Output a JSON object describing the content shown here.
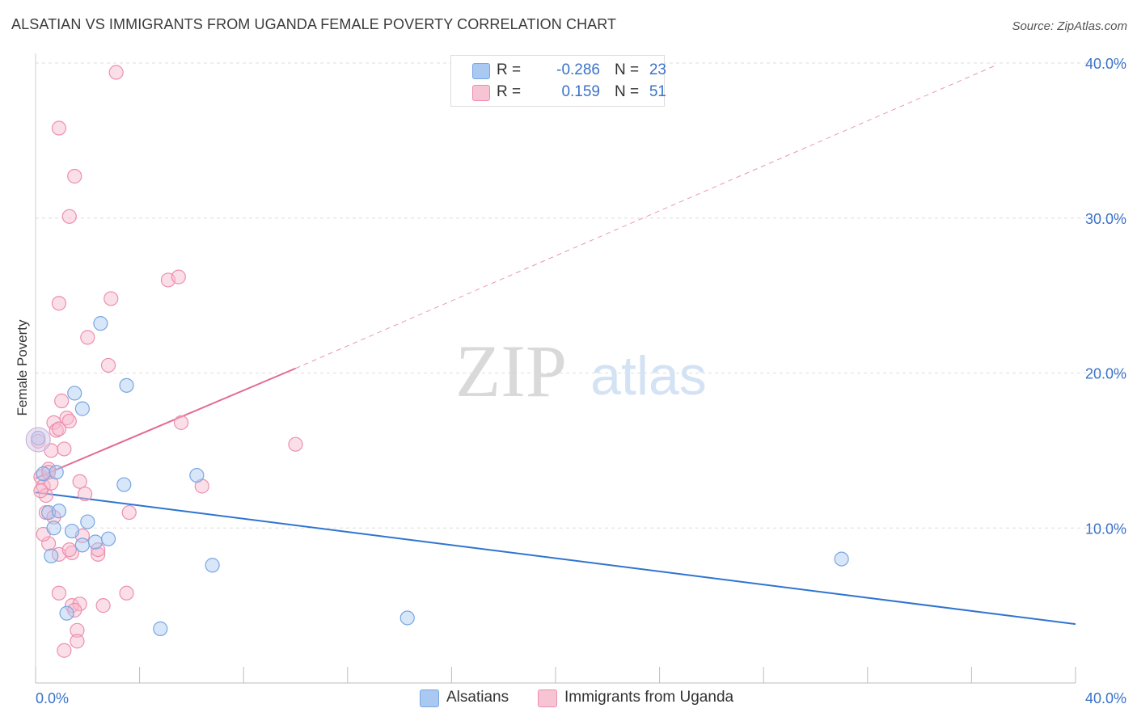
{
  "title": "ALSATIAN VS IMMIGRANTS FROM UGANDA FEMALE POVERTY CORRELATION CHART",
  "source": "Source: ZipAtlas.com",
  "watermark": {
    "zip": "ZIP",
    "atlas": "atlas"
  },
  "stats": {
    "r_label": "R =",
    "n_label": "N =",
    "alsatians": {
      "r": "-0.286",
      "n": "23"
    },
    "uganda": {
      "r": "0.159",
      "n": "51"
    }
  },
  "legend": {
    "alsatians": "Alsatians",
    "uganda": "Immigrants from Uganda"
  },
  "colors": {
    "blue_fill": "#a9c8f2",
    "blue_stroke": "#7aa6e0",
    "blue_line": "#2f74d0",
    "pink_fill": "#f7b8cc",
    "pink_stroke": "#ec8fae",
    "pink_line": "#e36a93",
    "axis_text": "#3a72c9"
  },
  "chart_data": {
    "type": "scatter",
    "title": "ALSATIAN VS IMMIGRANTS FROM UGANDA FEMALE POVERTY CORRELATION CHART",
    "xlabel": "",
    "ylabel": "Female Poverty",
    "xlim": [
      0,
      40
    ],
    "ylim": [
      0,
      40
    ],
    "x_tick_labels": [
      "0.0%",
      "40.0%"
    ],
    "y_ticks": [
      10,
      20,
      30,
      40
    ],
    "y_tick_labels": [
      "10.0%",
      "20.0%",
      "30.0%",
      "40.0%"
    ],
    "grid": true,
    "series": [
      {
        "name": "Alsatians",
        "r": -0.286,
        "n": 23,
        "trend": {
          "x": [
            0,
            40
          ],
          "y": [
            12.3,
            3.8
          ],
          "dashed_to": null
        },
        "points": [
          [
            0.1,
            15.8
          ],
          [
            0.3,
            13.5
          ],
          [
            0.8,
            13.6
          ],
          [
            0.5,
            11.0
          ],
          [
            0.9,
            11.1
          ],
          [
            0.7,
            10.0
          ],
          [
            1.4,
            9.8
          ],
          [
            1.8,
            8.9
          ],
          [
            2.3,
            9.1
          ],
          [
            2.8,
            9.3
          ],
          [
            0.6,
            8.2
          ],
          [
            2.0,
            10.4
          ],
          [
            1.2,
            4.5
          ],
          [
            4.8,
            3.5
          ],
          [
            1.5,
            18.7
          ],
          [
            1.8,
            17.7
          ],
          [
            2.5,
            23.2
          ],
          [
            3.5,
            19.2
          ],
          [
            3.4,
            12.8
          ],
          [
            6.2,
            13.4
          ],
          [
            6.8,
            7.6
          ],
          [
            14.3,
            4.2
          ],
          [
            31.0,
            8.0
          ]
        ]
      },
      {
        "name": "Immigrants from Uganda",
        "r": 0.159,
        "n": 51,
        "trend": {
          "x": [
            0,
            10
          ],
          "y": [
            13.2,
            20.3
          ],
          "dashed_to": [
            37,
            39.9
          ]
        },
        "points": [
          [
            0.1,
            15.6
          ],
          [
            0.2,
            13.3
          ],
          [
            0.3,
            12.7
          ],
          [
            0.4,
            12.1
          ],
          [
            0.5,
            13.8
          ],
          [
            0.6,
            12.9
          ],
          [
            0.7,
            16.8
          ],
          [
            0.8,
            16.3
          ],
          [
            0.6,
            15.0
          ],
          [
            0.9,
            16.4
          ],
          [
            0.4,
            11.0
          ],
          [
            0.7,
            10.7
          ],
          [
            1.0,
            18.2
          ],
          [
            1.2,
            17.1
          ],
          [
            1.3,
            16.9
          ],
          [
            1.1,
            15.1
          ],
          [
            0.5,
            9.0
          ],
          [
            0.9,
            8.3
          ],
          [
            1.4,
            8.4
          ],
          [
            1.3,
            8.6
          ],
          [
            1.8,
            9.5
          ],
          [
            1.9,
            12.2
          ],
          [
            1.7,
            13.0
          ],
          [
            2.4,
            8.3
          ],
          [
            2.4,
            8.6
          ],
          [
            0.9,
            24.5
          ],
          [
            1.3,
            30.1
          ],
          [
            1.5,
            32.7
          ],
          [
            0.9,
            35.8
          ],
          [
            3.1,
            39.4
          ],
          [
            2.0,
            22.3
          ],
          [
            2.9,
            24.8
          ],
          [
            2.8,
            20.5
          ],
          [
            5.1,
            26.0
          ],
          [
            5.5,
            26.2
          ],
          [
            3.6,
            11.0
          ],
          [
            5.6,
            16.8
          ],
          [
            6.4,
            12.7
          ],
          [
            10.0,
            15.4
          ],
          [
            0.9,
            5.8
          ],
          [
            1.4,
            5.0
          ],
          [
            1.7,
            5.1
          ],
          [
            2.6,
            5.0
          ],
          [
            3.5,
            5.8
          ],
          [
            1.5,
            4.7
          ],
          [
            1.6,
            3.4
          ],
          [
            1.6,
            2.7
          ],
          [
            1.1,
            2.1
          ],
          [
            0.2,
            12.4
          ],
          [
            0.3,
            9.6
          ],
          [
            0.5,
            13.6
          ]
        ]
      }
    ]
  }
}
